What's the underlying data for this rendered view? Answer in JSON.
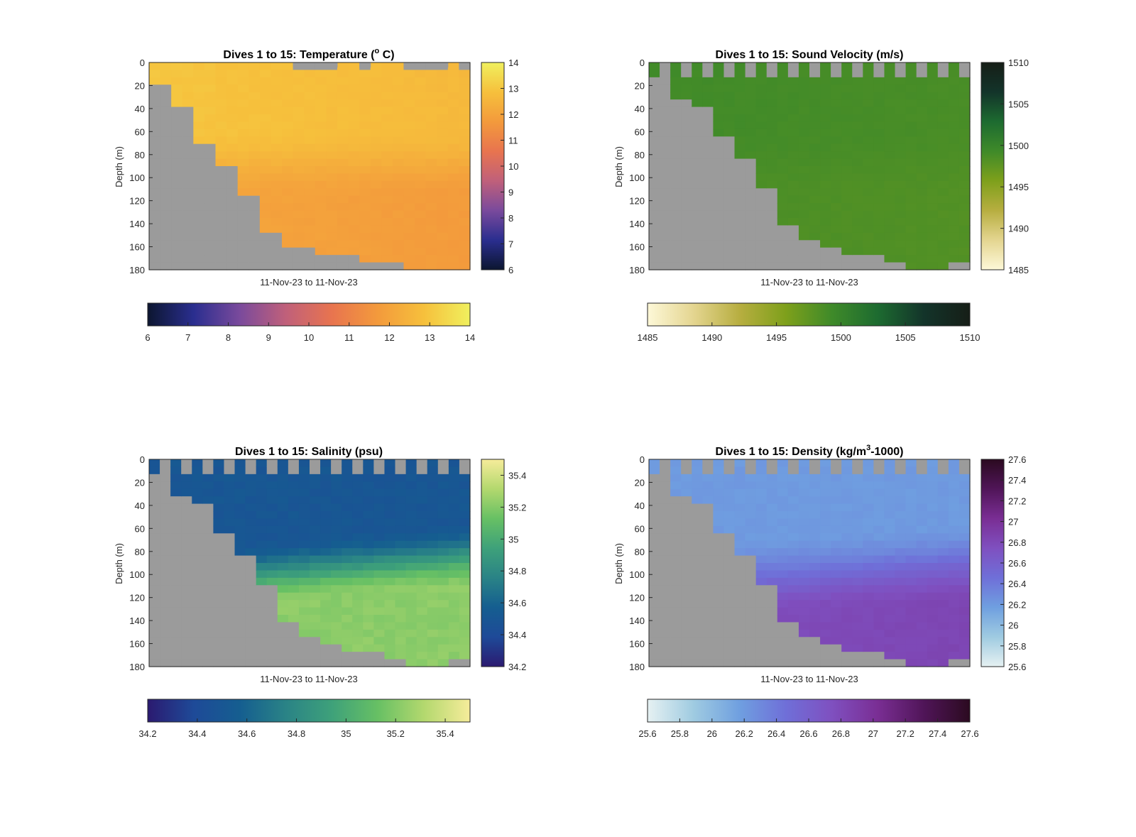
{
  "figure": {
    "background": "#ffffff",
    "no_data_color": "#9b9b9b"
  },
  "chart_data": [
    {
      "type": "heatmap",
      "title": "Dives 1 to 15: Temperature (o C)",
      "title_parts": {
        "before": "Dives 1 to 15: Temperature (",
        "sup": "o",
        "after": " C)"
      },
      "xlabel": "11-Nov-23 to 11-Nov-23",
      "ylabel": "Depth (m)",
      "ylim": [
        0,
        180
      ],
      "y_ticks": [
        "0",
        "20",
        "40",
        "60",
        "80",
        "100",
        "120",
        "140",
        "160",
        "180"
      ],
      "y_tick_values": [
        0,
        20,
        40,
        60,
        80,
        100,
        120,
        140,
        160,
        180
      ],
      "columns": 29,
      "colorbar": {
        "range": [
          6,
          14
        ],
        "ticks": [
          "6",
          "7",
          "8",
          "9",
          "10",
          "11",
          "12",
          "13",
          "14"
        ],
        "tick_values": [
          6,
          7,
          8,
          9,
          10,
          11,
          12,
          13,
          14
        ],
        "colors": [
          "#0c1630",
          "#2a2e8f",
          "#7a4a9c",
          "#c0607a",
          "#e8744f",
          "#f39a3c",
          "#f6c03c",
          "#f0f05e"
        ]
      },
      "field": {
        "type": "temperature",
        "surface": 13.0,
        "deep": 12.1,
        "thermocline": 80
      },
      "surface_gap_columns": [
        13,
        14,
        15,
        16,
        19,
        23,
        24,
        25,
        26,
        28
      ],
      "bottom_depths": [
        18,
        40,
        72,
        90,
        116,
        146,
        160,
        162,
        166,
        170,
        172,
        176,
        180,
        180,
        180
      ]
    },
    {
      "type": "heatmap",
      "title": "Dives 1 to 15: Sound Velocity (m/s)",
      "xlabel": "11-Nov-23 to 11-Nov-23",
      "ylabel": "Depth (m)",
      "ylim": [
        0,
        180
      ],
      "y_ticks": [
        "0",
        "20",
        "40",
        "60",
        "80",
        "100",
        "120",
        "140",
        "160",
        "180"
      ],
      "y_tick_values": [
        0,
        20,
        40,
        60,
        80,
        100,
        120,
        140,
        160,
        180
      ],
      "columns": 30,
      "colorbar": {
        "range": [
          1485,
          1510
        ],
        "ticks": [
          "1485",
          "1490",
          "1495",
          "1500",
          "1505",
          "1510"
        ],
        "tick_values": [
          1485,
          1490,
          1495,
          1500,
          1505,
          1510
        ],
        "colors": [
          "#fdf8d8",
          "#e4d590",
          "#b7ae40",
          "#7ea01b",
          "#3f8a29",
          "#1d6b30",
          "#13342a",
          "#161e17"
        ]
      },
      "field": {
        "type": "sound_velocity",
        "surface": 1499.2,
        "deep": 1498.7,
        "thermocline": 80
      },
      "surface_gap_columns": "alternate",
      "bottom_depths": [
        14,
        30,
        40,
        64,
        84,
        112,
        142,
        156,
        160,
        166,
        170,
        174,
        178,
        178,
        176
      ]
    },
    {
      "type": "heatmap",
      "title": "Dives 1 to 15: Salinity (psu)",
      "xlabel": "11-Nov-23 to 11-Nov-23",
      "ylabel": "Depth (m)",
      "ylim": [
        0,
        180
      ],
      "y_ticks": [
        "0",
        "20",
        "40",
        "60",
        "80",
        "100",
        "120",
        "140",
        "160",
        "180"
      ],
      "y_tick_values": [
        0,
        20,
        40,
        60,
        80,
        100,
        120,
        140,
        160,
        180
      ],
      "columns": 30,
      "colorbar": {
        "range": [
          34.2,
          35.5
        ],
        "ticks": [
          "34.2",
          "34.4",
          "34.6",
          "34.8",
          "35",
          "35.2",
          "35.4"
        ],
        "tick_values": [
          34.2,
          34.4,
          34.6,
          34.8,
          35.0,
          35.2,
          35.4
        ],
        "colors": [
          "#2b1a70",
          "#1e4a98",
          "#155e90",
          "#2a8386",
          "#3ea17a",
          "#67c064",
          "#b3d86e",
          "#f6ec9a"
        ]
      },
      "field": {
        "type": "salinity",
        "surface": 34.5,
        "deep": 35.22,
        "thermocline": 80
      },
      "surface_gap_columns": "alternate",
      "bottom_depths": [
        14,
        30,
        40,
        64,
        84,
        112,
        142,
        156,
        160,
        166,
        170,
        174,
        178,
        178,
        176
      ]
    },
    {
      "type": "heatmap",
      "title": "Dives 1 to 15: Density (kg/m3-1000)",
      "title_parts": {
        "before": "Dives 1 to 15: Density (kg/m",
        "sup": "3",
        "after": "-1000)"
      },
      "xlabel": "11-Nov-23 to 11-Nov-23",
      "ylabel": "Depth (m)",
      "ylim": [
        0,
        180
      ],
      "y_ticks": [
        "0",
        "20",
        "40",
        "60",
        "80",
        "100",
        "120",
        "140",
        "160",
        "180"
      ],
      "y_tick_values": [
        0,
        20,
        40,
        60,
        80,
        100,
        120,
        140,
        160,
        180
      ],
      "columns": 30,
      "colorbar": {
        "range": [
          25.6,
          27.6
        ],
        "ticks": [
          "25.6",
          "25.8",
          "26",
          "26.2",
          "26.4",
          "26.6",
          "26.8",
          "27",
          "27.2",
          "27.4",
          "27.6"
        ],
        "tick_values": [
          25.6,
          25.8,
          26.0,
          26.2,
          26.4,
          26.6,
          26.8,
          27.0,
          27.2,
          27.4,
          27.6
        ],
        "colors": [
          "#e6f1f2",
          "#9fcbe1",
          "#6f9fe0",
          "#6f6fd8",
          "#7f50c0",
          "#7a2e94",
          "#501558",
          "#2b0a20"
        ]
      },
      "field": {
        "type": "density",
        "surface": 26.2,
        "deep": 26.75,
        "thermocline": 80
      },
      "surface_gap_columns": "alternate",
      "bottom_depths": [
        14,
        30,
        40,
        64,
        84,
        112,
        142,
        156,
        160,
        166,
        170,
        174,
        178,
        178,
        176
      ]
    }
  ]
}
